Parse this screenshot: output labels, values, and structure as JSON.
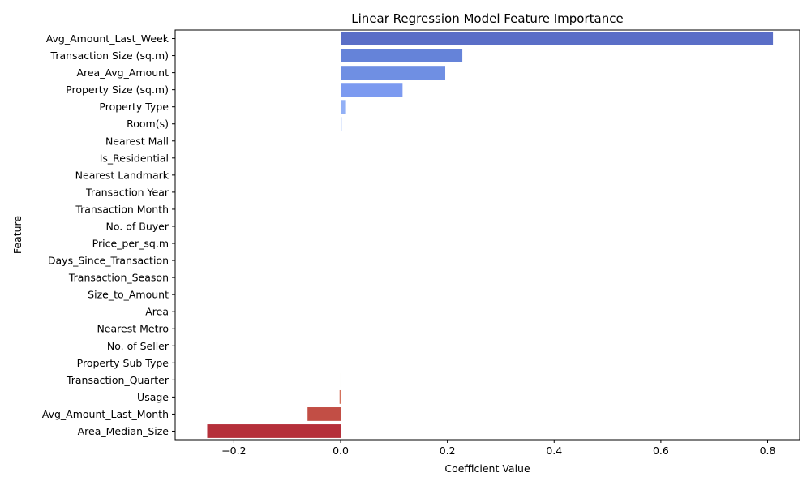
{
  "chart_data": {
    "type": "bar",
    "orientation": "horizontal",
    "title": "Linear Regression Model Feature Importance",
    "xlabel": "Coefficient Value",
    "ylabel": "Feature",
    "xlim": [
      -0.31,
      0.86
    ],
    "xticks": [
      -0.2,
      0.0,
      0.2,
      0.4,
      0.6,
      0.8
    ],
    "xtick_labels": [
      "−0.2",
      "0.0",
      "0.2",
      "0.4",
      "0.6",
      "0.8"
    ],
    "grid": false,
    "legend": "none",
    "colormap": "coolwarm",
    "categories": [
      "Avg_Amount_Last_Week",
      "Transaction Size (sq.m)",
      "Area_Avg_Amount",
      "Property Size (sq.m)",
      "Property Type",
      "Room(s)",
      "Nearest Mall",
      "Is_Residential",
      "Nearest Landmark",
      "Transaction Year",
      "Transaction Month",
      "No. of Buyer",
      "Price_per_sq.m",
      "Days_Since_Transaction",
      "Transaction_Season",
      "Size_to_Amount",
      "Area",
      "Nearest Metro",
      "No. of Seller",
      "Property Sub Type",
      "Transaction_Quarter",
      "Usage",
      "Avg_Amount_Last_Month",
      "Area_Median_Size"
    ],
    "values": [
      0.81,
      0.228,
      0.196,
      0.116,
      0.01,
      0.002,
      0.0015,
      0.001,
      0.0003,
      0.0002,
      0.0001,
      0.0001,
      0.0,
      0.0,
      0.0,
      0.0,
      0.0,
      0.0,
      0.0,
      0.0,
      -0.0001,
      -0.002,
      -0.062,
      -0.25
    ],
    "colors": [
      "#5a6ec7",
      "#6583d9",
      "#6f8fe3",
      "#7c9af0",
      "#92b0f6",
      "#a6c1f9",
      "#b6cdf9",
      "#c4d5f3",
      "#cdd9ec",
      "#d3dbe7",
      "#d8dce2",
      "#dbdcde",
      "#dddcdc",
      "#dddcdc",
      "#dddcdc",
      "#dddcdc",
      "#dddcdc",
      "#dddcdc",
      "#dddcdc",
      "#dddcdc",
      "#e0d9d6",
      "#d4725c",
      "#c24e45",
      "#b5303a"
    ]
  }
}
